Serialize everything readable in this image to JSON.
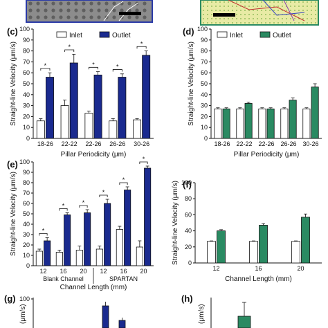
{
  "colors": {
    "inlet": "#ffffff",
    "outlet_c": "#1a2a8f",
    "outlet_d": "#2a8a62",
    "axis": "#111111"
  },
  "chart_data": [
    {
      "panel": "(c)",
      "type": "bar",
      "categories": [
        "18-26",
        "22-22",
        "22-26",
        "26-26",
        "30-26"
      ],
      "series": [
        {
          "name": "Inlet",
          "values": [
            16,
            30,
            23,
            16,
            17
          ],
          "errors": [
            2,
            5,
            2,
            2,
            1
          ]
        },
        {
          "name": "Outlet",
          "values": [
            56,
            69,
            58,
            56,
            76
          ],
          "errors": [
            4,
            8,
            3,
            3,
            4
          ]
        }
      ],
      "xlabel": "Pillar Periodicity (μm)",
      "ylabel": "Straight-line Velocity (μm/s)",
      "ylim": [
        0,
        100
      ],
      "yticks": [
        "0",
        "10",
        "20",
        "30",
        "40",
        "50",
        "60",
        "70",
        "80",
        "90",
        "100"
      ]
    },
    {
      "panel": "(d)",
      "type": "bar",
      "categories": [
        "18-26",
        "22-22",
        "22-26",
        "26-26",
        "30-26"
      ],
      "series": [
        {
          "name": "Inlet",
          "values": [
            27,
            27,
            27,
            27,
            27
          ],
          "errors": [
            1,
            1,
            1,
            1,
            1
          ]
        },
        {
          "name": "Outlet",
          "values": [
            27,
            32,
            27,
            35,
            47
          ],
          "errors": [
            1,
            1,
            1,
            2,
            3
          ]
        }
      ],
      "xlabel": "Pillar Periodicity (μm)",
      "ylabel": "Straight-line Velocity (μm/s)",
      "ylim": [
        0,
        100
      ],
      "yticks": [
        "0",
        "10",
        "20",
        "30",
        "40",
        "50",
        "60",
        "70",
        "80",
        "90",
        "100"
      ]
    },
    {
      "panel": "(e)",
      "type": "bar",
      "categories": [
        "12",
        "16",
        "20",
        "12",
        "16",
        "20"
      ],
      "groups": [
        "Blank Channel",
        "SPARTAN"
      ],
      "series": [
        {
          "name": "Inlet",
          "values": [
            14,
            13,
            15,
            16,
            35,
            18
          ],
          "errors": [
            2,
            2,
            4,
            3,
            3,
            6
          ]
        },
        {
          "name": "Outlet",
          "values": [
            24,
            49,
            51,
            60,
            73,
            94
          ],
          "errors": [
            3,
            2,
            3,
            4,
            3,
            2
          ]
        }
      ],
      "xlabel": "Channel Length (mm)",
      "ylabel": "Straight-line Velocity (μm/s)",
      "ylim": [
        0,
        100
      ],
      "yticks": [
        "0",
        "10",
        "20",
        "30",
        "40",
        "50",
        "60",
        "70",
        "80",
        "90",
        "100"
      ]
    },
    {
      "panel": "(f)",
      "type": "bar",
      "categories": [
        "12",
        "16",
        "20"
      ],
      "series": [
        {
          "name": "Inlet",
          "values": [
            27,
            27,
            27
          ],
          "errors": [
            0.5,
            0.5,
            0.5
          ]
        },
        {
          "name": "Outlet",
          "values": [
            40,
            47,
            57
          ],
          "errors": [
            1.5,
            2,
            4
          ]
        }
      ],
      "xlabel": "Channel Length (mm)",
      "ylabel": "Straight-line Velocity (μm/s)",
      "ylim": [
        0,
        100
      ],
      "yticks": [
        "0",
        "20",
        "40",
        "60",
        "80",
        "100"
      ]
    }
  ],
  "panel_g": {
    "label": "(g)",
    "yticks": [
      "100"
    ],
    "ylabel": "(μm/s)"
  },
  "panel_h": {
    "label": "(h)",
    "ylabel": "(μm/s)"
  },
  "legend": {
    "inlet": "Inlet",
    "outlet": "Outlet"
  }
}
